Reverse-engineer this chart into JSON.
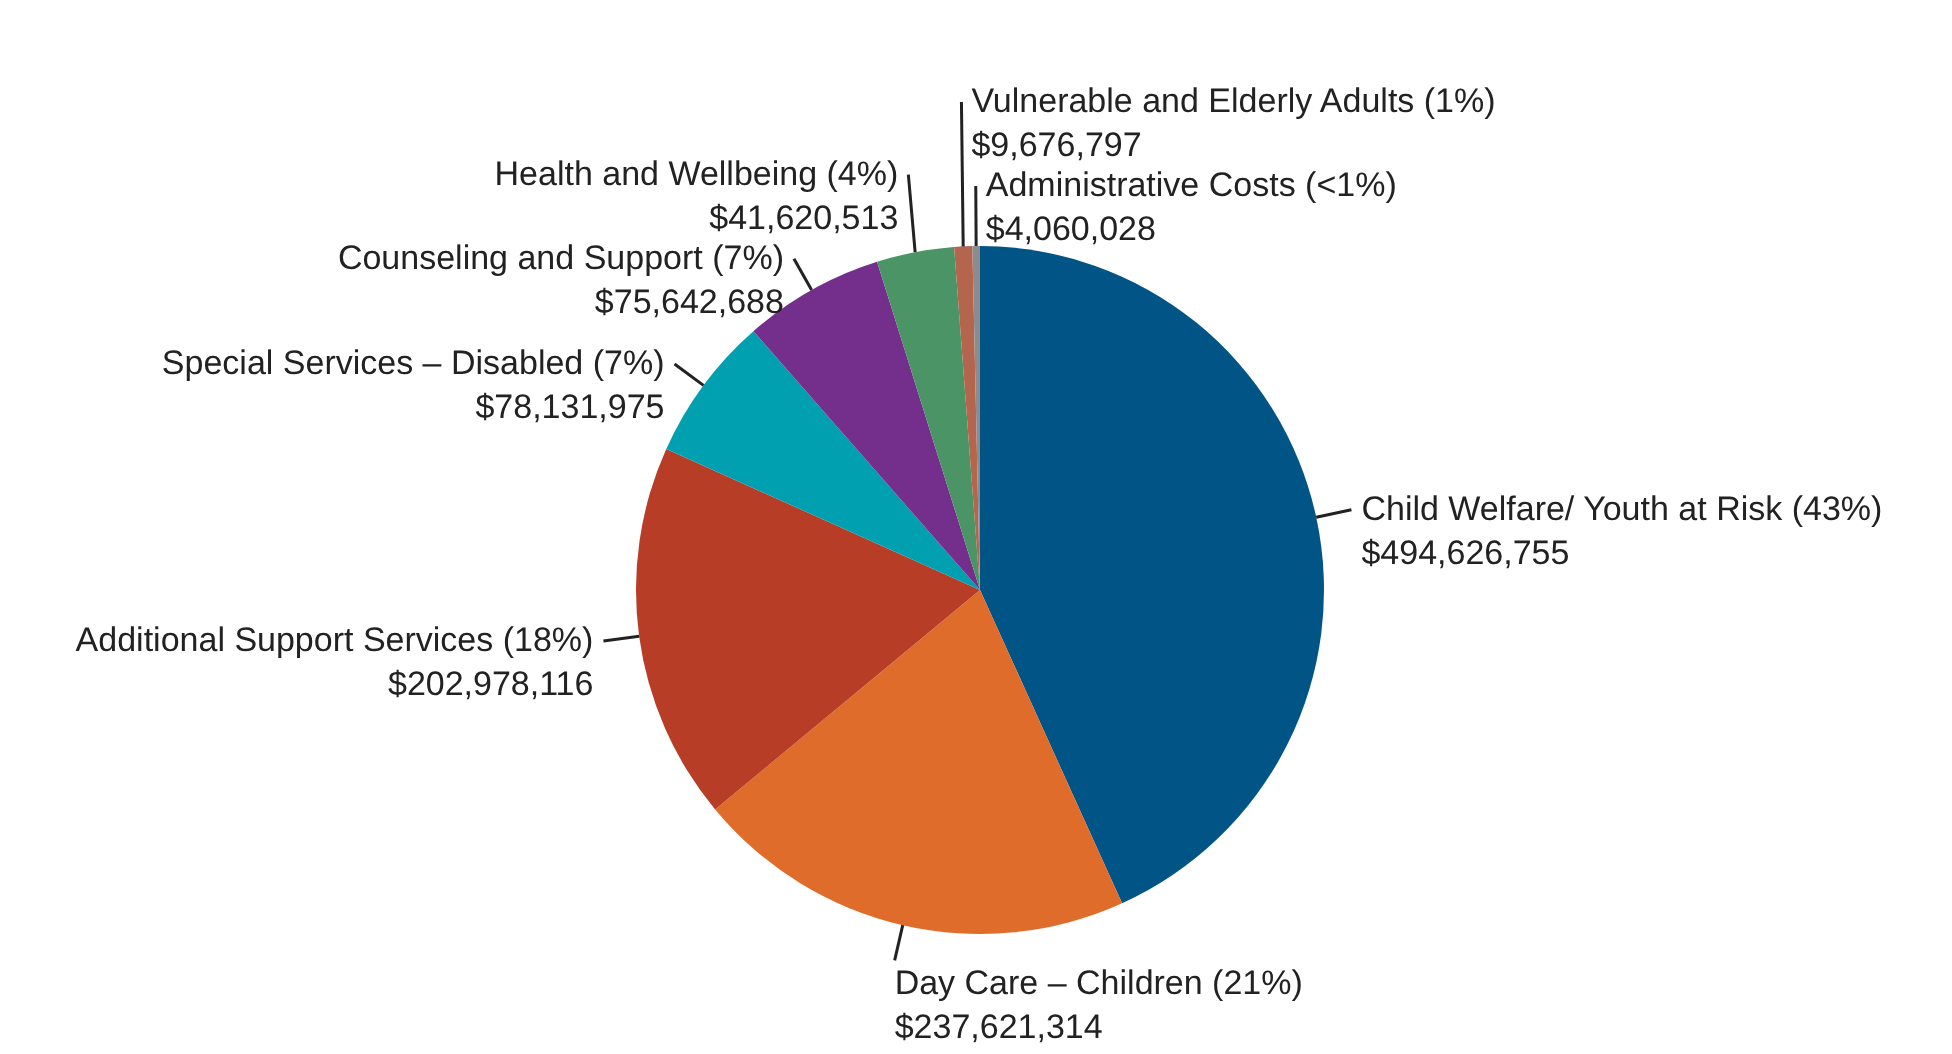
{
  "chart_data": {
    "type": "pie",
    "categories": [
      "Child Welfare/ Youth at Risk (43%)",
      "Day Care – Children (21%)",
      "Additional Support Services (18%)",
      "Special Services – Disabled (7%)",
      "Counseling and Support (7%)",
      "Health and Wellbeing (4%)",
      "Vulnerable and Elderly Adults (1%)",
      "Administrative Costs (<1%)"
    ],
    "values": [
      494626755,
      237621314,
      202978116,
      78131975,
      75642688,
      41620513,
      9676797,
      4060028
    ],
    "value_labels": [
      "$494,626,755",
      "$237,621,314",
      "$202,978,116",
      "$78,131,975",
      "$75,642,688",
      "$41,620,513",
      "$9,676,797",
      "$4,060,028"
    ],
    "colors": [
      "#005486",
      "#e06c2c",
      "#b83d26",
      "#00a0b0",
      "#742e8c",
      "#4a9466",
      "#b4654e",
      "#8c8c8c"
    ]
  }
}
